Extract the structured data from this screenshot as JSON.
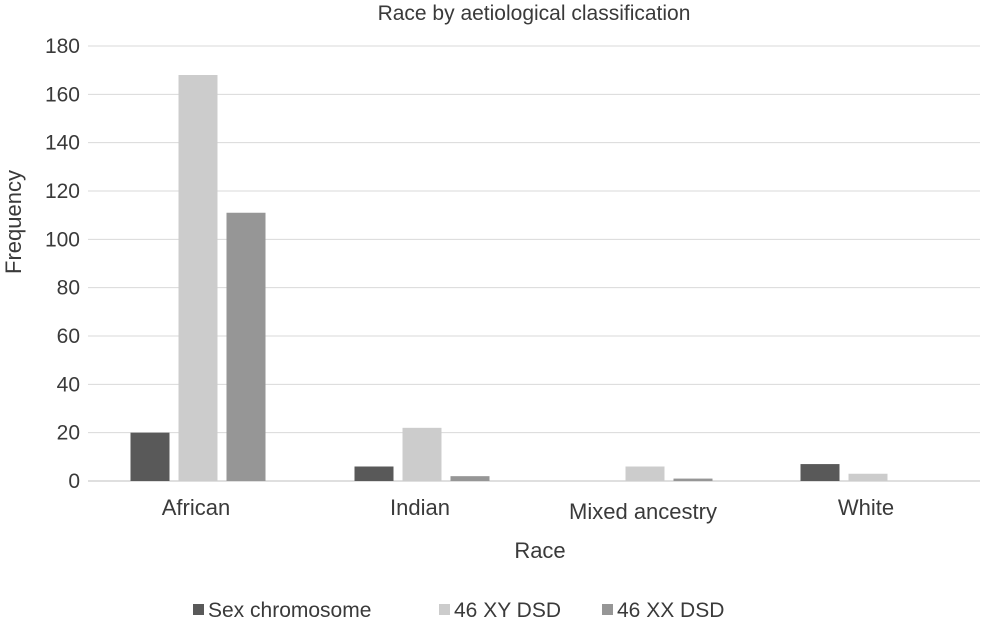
{
  "chart_data": {
    "type": "bar",
    "title": "Race by aetiological classification",
    "xlabel": "Race",
    "ylabel": "Frequency",
    "categories": [
      "African",
      "Indian",
      "Mixed ancestry",
      "White"
    ],
    "series": [
      {
        "name": "Sex chromosome",
        "color": "#595959",
        "values": [
          20,
          6,
          0,
          7
        ]
      },
      {
        "name": "46 XY DSD",
        "color": "#cccccc",
        "values": [
          168,
          22,
          6,
          3
        ]
      },
      {
        "name": "46 XX DSD",
        "color": "#969696",
        "values": [
          111,
          2,
          1,
          0
        ]
      }
    ],
    "ylim": [
      0,
      180
    ],
    "yticks": [
      0,
      20,
      40,
      60,
      80,
      100,
      120,
      140,
      160,
      180
    ],
    "grid": true,
    "legend_position": "bottom"
  }
}
